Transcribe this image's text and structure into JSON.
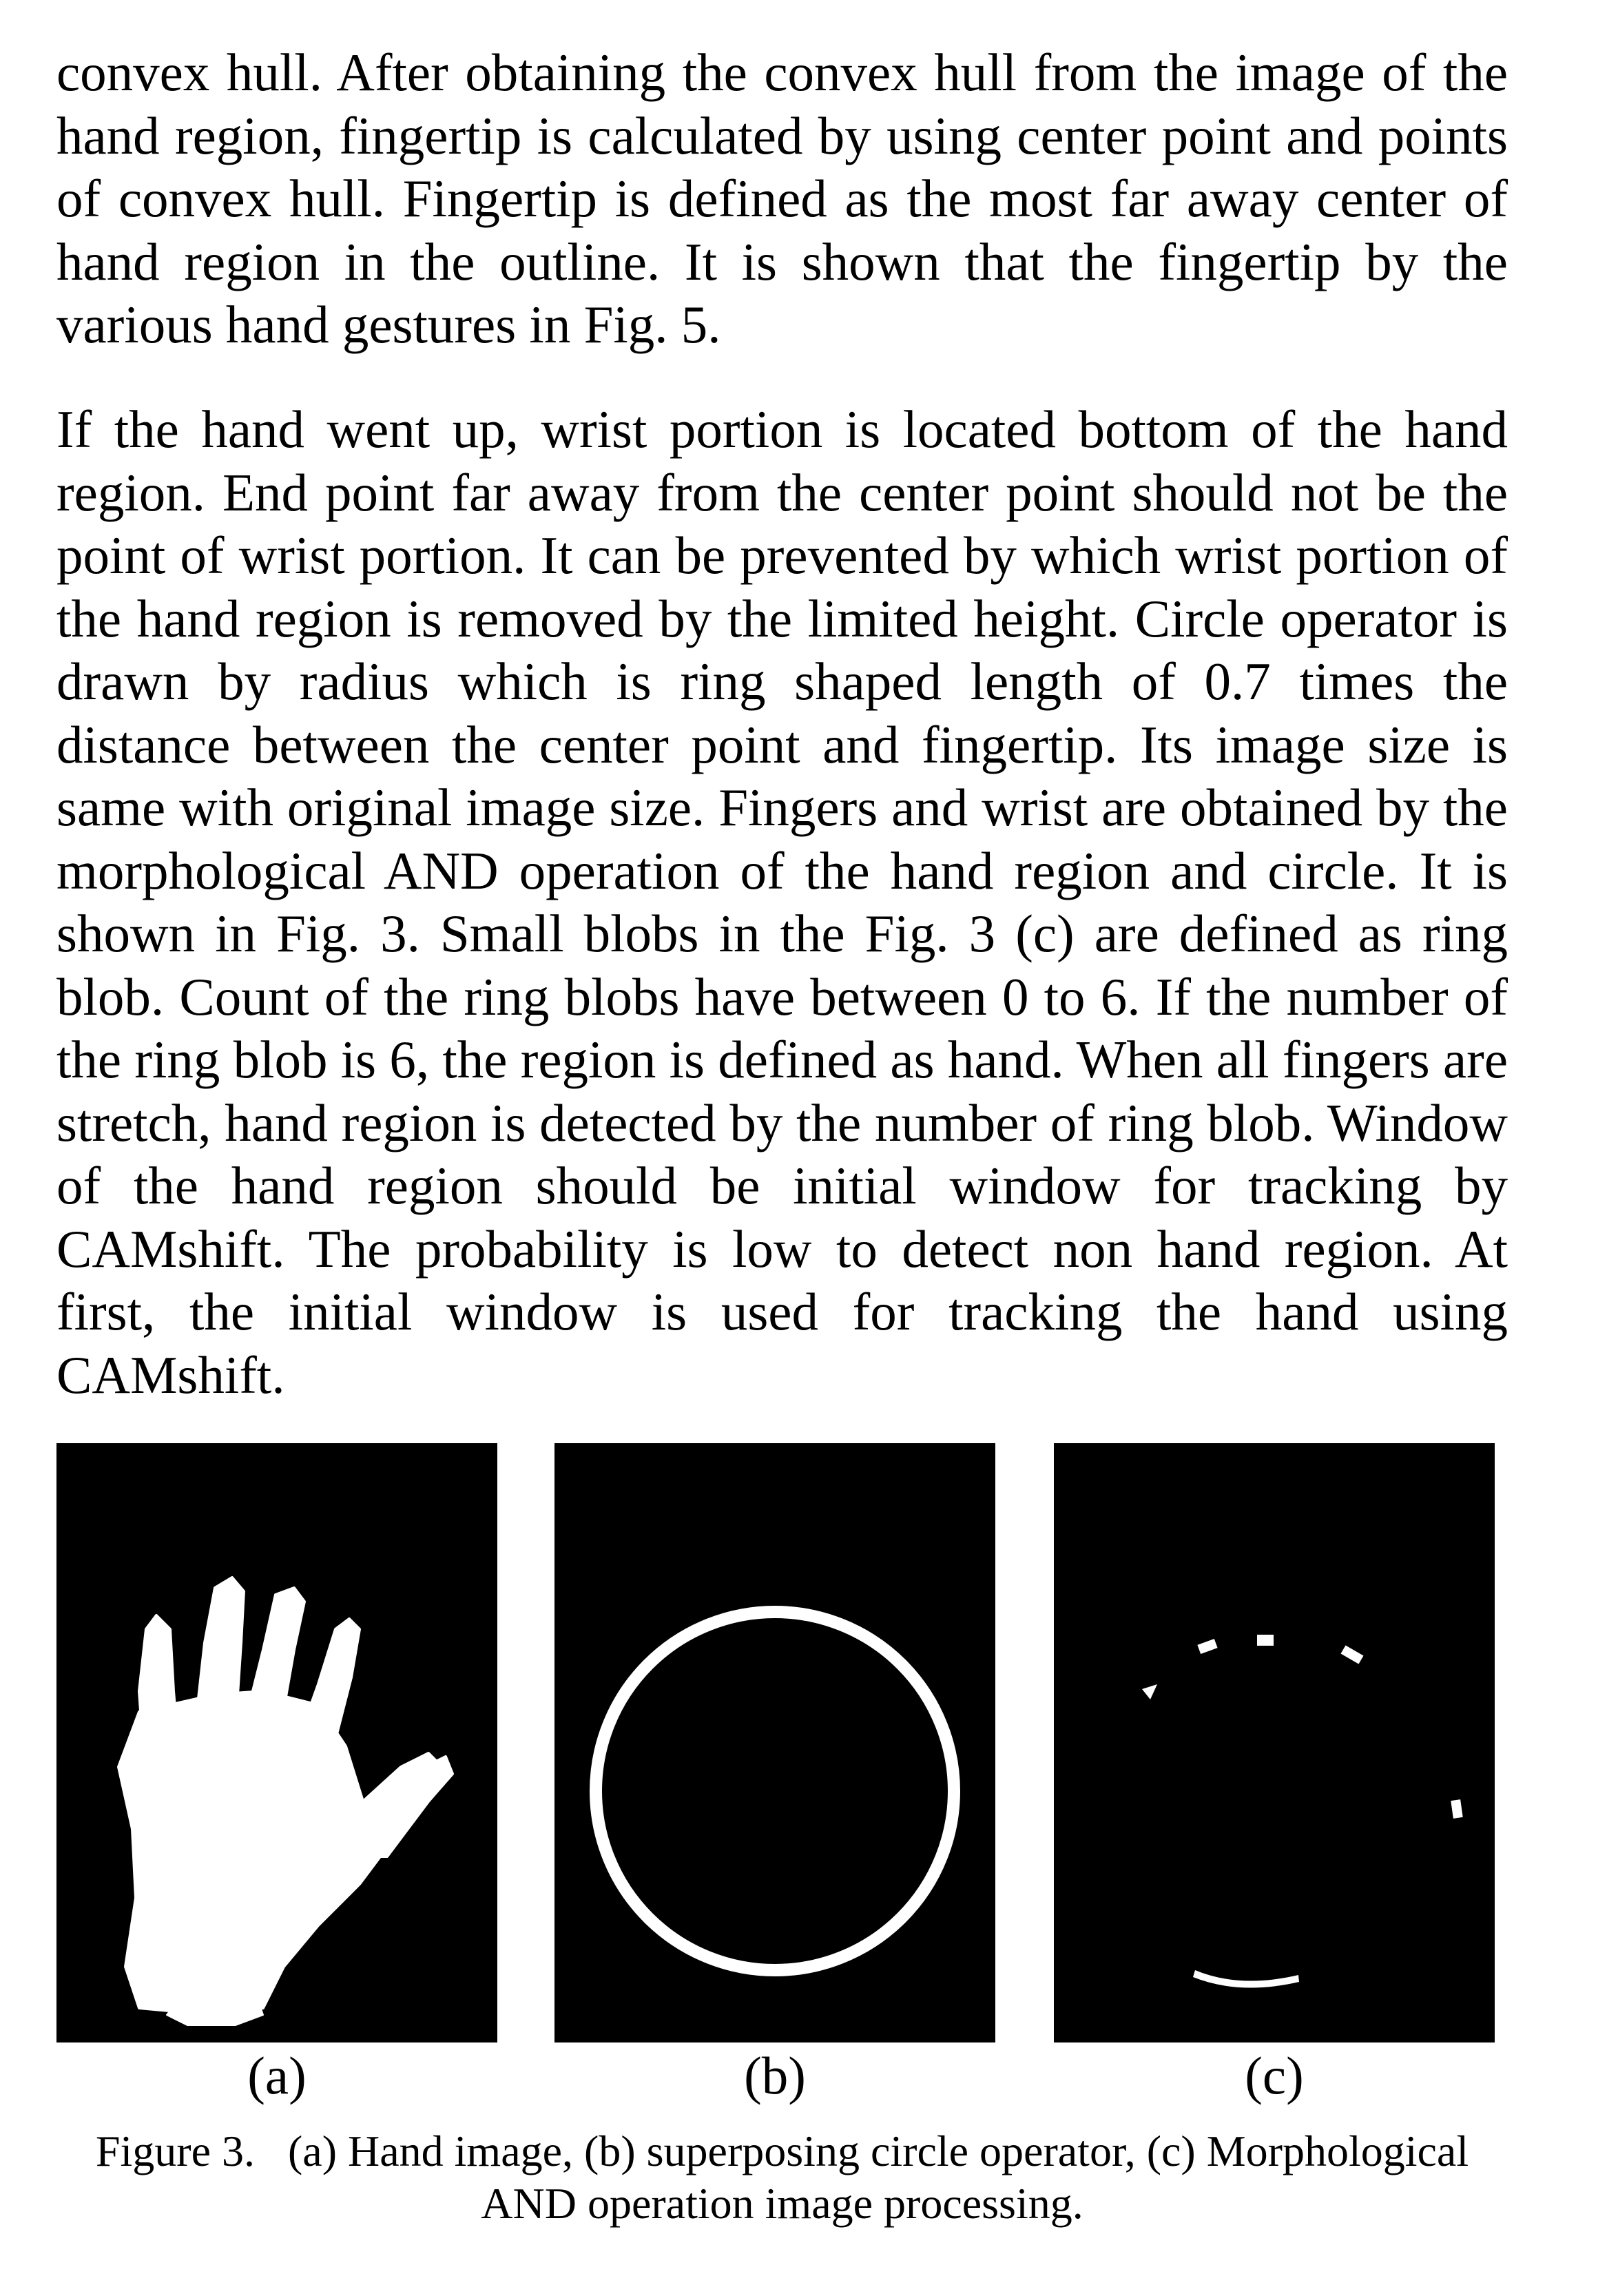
{
  "body": {
    "paragraphs": [
      "convex hull. After obtaining the convex hull from the image of the hand region, fingertip is calculated by using center point and points of convex hull. Fingertip is defined as the most far away center of hand region in the outline. It is shown that the fingertip by the various hand gestures in Fig. 5.",
      "If the hand went up, wrist portion is located bottom of the hand region. End point far away from the center point should not be the point of wrist portion. It can be prevented by which wrist portion of the hand region is removed by the limited height. Circle operator is drawn by radius which is ring shaped length of 0.7 times the distance between the center point and fingertip. Its image size is same with original image size. Fingers and wrist are obtained by the morphological AND operation of the hand region and circle. It is shown in Fig. 3. Small blobs in the Fig. 3 (c) are defined as ring blob. Count of the ring blobs have between 0 to 6. If the number of the ring blob is 6, the region is defined as hand. When all fingers are stretch, hand region is detected by the number of ring blob. Window of the hand region should be initial window for tracking by CAMshift. The probability is low to detect non hand region. At first, the initial window is used for tracking the hand using CAMshift."
    ]
  },
  "figure": {
    "panels": [
      {
        "label": "(a)",
        "content": "hand-silhouette"
      },
      {
        "label": "(b)",
        "content": "circle-operator-ring"
      },
      {
        "label": "(c)",
        "content": "ring-blobs"
      }
    ],
    "colors": {
      "background": "#000000",
      "foreground": "#ffffff"
    },
    "caption_lines": [
      "Figure 3.   (a) Hand image, (b) superposing circle operator, (c) Morphological",
      "AND operation image processing."
    ]
  }
}
